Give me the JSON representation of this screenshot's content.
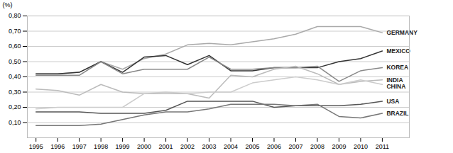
{
  "chart_data": {
    "type": "line",
    "ylabel": "(%)",
    "x": [
      1995,
      1996,
      1997,
      1998,
      1999,
      2000,
      2001,
      2002,
      2003,
      2004,
      2005,
      2006,
      2007,
      2008,
      2009,
      2010,
      2011
    ],
    "series": [
      {
        "name": "GERMANY",
        "color": "#aaaaaa",
        "values": [
          0.42,
          0.42,
          0.43,
          0.5,
          0.45,
          0.52,
          0.55,
          0.61,
          0.62,
          0.61,
          0.63,
          0.65,
          0.68,
          0.73,
          0.73,
          0.73,
          0.69
        ]
      },
      {
        "name": "MEXICO",
        "color": "#333333",
        "values": [
          0.42,
          0.42,
          0.43,
          0.5,
          0.43,
          0.53,
          0.54,
          0.48,
          0.54,
          0.44,
          0.44,
          0.46,
          0.46,
          0.46,
          0.5,
          0.52,
          0.57
        ]
      },
      {
        "name": "KOREA",
        "color": "#888888",
        "values": [
          0.41,
          0.41,
          0.41,
          0.5,
          0.42,
          0.45,
          0.45,
          0.45,
          0.53,
          0.45,
          0.45,
          0.46,
          0.46,
          0.47,
          0.37,
          0.44,
          0.46
        ]
      },
      {
        "name": "INDIA",
        "color": "#bbbbbb",
        "values": [
          0.32,
          0.31,
          0.28,
          0.35,
          0.3,
          0.29,
          0.29,
          0.29,
          0.26,
          0.41,
          0.4,
          0.45,
          0.47,
          0.42,
          0.35,
          0.37,
          0.38
        ]
      },
      {
        "name": "CHINA",
        "color": "#cccccc",
        "values": [
          0.19,
          0.2,
          0.2,
          0.2,
          0.2,
          0.29,
          0.3,
          0.29,
          0.3,
          0.3,
          0.36,
          0.38,
          0.4,
          0.38,
          0.35,
          0.38,
          0.35
        ]
      },
      {
        "name": "USA",
        "color": "#555555",
        "values": [
          0.17,
          0.17,
          0.17,
          0.16,
          0.16,
          0.16,
          0.18,
          0.24,
          0.24,
          0.24,
          0.24,
          0.2,
          0.21,
          0.21,
          0.21,
          0.22,
          0.24
        ]
      },
      {
        "name": "BRAZIL",
        "color": "#777777",
        "values": [
          0.08,
          0.08,
          0.08,
          0.09,
          0.12,
          0.15,
          0.17,
          0.17,
          0.19,
          0.22,
          0.22,
          0.22,
          0.21,
          0.22,
          0.14,
          0.13,
          0.16
        ]
      }
    ],
    "xlim": [
      1994.6,
      2012.25
    ],
    "xticks": [
      1995,
      1996,
      1997,
      1998,
      1999,
      2000,
      2001,
      2002,
      2003,
      2004,
      2005,
      2006,
      2007,
      2008,
      2009,
      2010,
      2011
    ],
    "ylim": [
      0.0,
      0.8
    ],
    "yticks": [
      {
        "value": 0.1,
        "label": "0,10"
      },
      {
        "value": 0.2,
        "label": "0,20"
      },
      {
        "value": 0.3,
        "label": "0,30"
      },
      {
        "value": 0.4,
        "label": "0,40"
      },
      {
        "value": 0.5,
        "label": "0,50"
      },
      {
        "value": 0.6,
        "label": "0,60"
      },
      {
        "value": 0.7,
        "label": "0,70"
      },
      {
        "value": 0.8,
        "label": "0,80"
      }
    ],
    "grid": true
  }
}
